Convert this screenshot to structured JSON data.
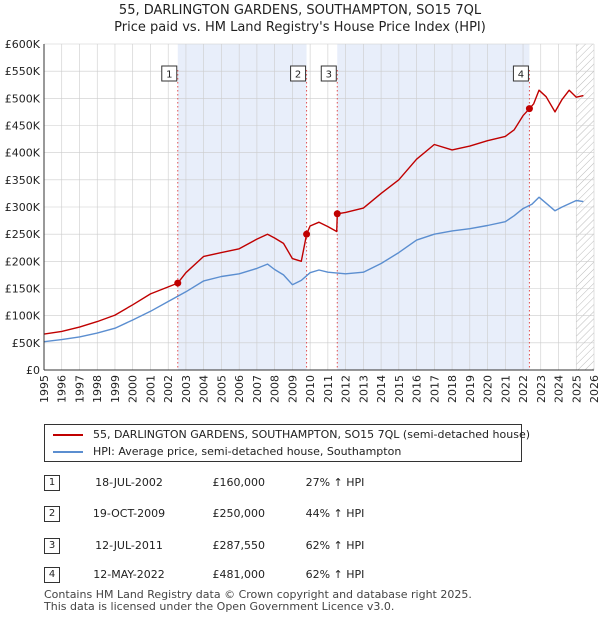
{
  "title_line1": "55, DARLINGTON GARDENS, SOUTHAMPTON, SO15 7QL",
  "title_line2": "Price paid vs. HM Land Registry's House Price Index (HPI)",
  "legend": {
    "property_label": "55, DARLINGTON GARDENS, SOUTHAMPTON, SO15 7QL (semi-detached house)",
    "hpi_label": "HPI: Average price, semi-detached house, Southampton"
  },
  "sales": [
    {
      "badge": "1",
      "date": "18-JUL-2002",
      "price": "£160,000",
      "hpi": "27% ↑ HPI"
    },
    {
      "badge": "2",
      "date": "19-OCT-2009",
      "price": "£250,000",
      "hpi": "44% ↑ HPI"
    },
    {
      "badge": "3",
      "date": "12-JUL-2011",
      "price": "£287,550",
      "hpi": "62% ↑ HPI"
    },
    {
      "badge": "4",
      "date": "12-MAY-2022",
      "price": "£481,000",
      "hpi": "62% ↑ HPI"
    }
  ],
  "footer_line1": "Contains HM Land Registry data © Crown copyright and database right 2025.",
  "footer_line2": "This data is licensed under the Open Government Licence v3.0.",
  "colors": {
    "property_line": "#c00000",
    "hpi_line": "#5b8ed0",
    "shade": "#e8eefa",
    "hatch": "#bbbbbb",
    "vline": "#e05050",
    "grid": "#cccccc"
  },
  "chart_data": {
    "type": "line",
    "title": "Price paid vs. HM Land Registry's House Price Index (HPI)",
    "xlim": [
      1995,
      2026
    ],
    "ylim": [
      0,
      600000
    ],
    "xticks": [
      1995,
      1996,
      1997,
      1998,
      1999,
      2000,
      2001,
      2002,
      2003,
      2004,
      2005,
      2006,
      2007,
      2008,
      2009,
      2010,
      2011,
      2012,
      2013,
      2014,
      2015,
      2016,
      2017,
      2018,
      2019,
      2020,
      2021,
      2022,
      2023,
      2024,
      2025,
      2026
    ],
    "yticks": [
      0,
      50000,
      100000,
      150000,
      200000,
      250000,
      300000,
      350000,
      400000,
      450000,
      500000,
      550000,
      600000
    ],
    "ytick_labels": [
      "£0",
      "£50K",
      "£100K",
      "£150K",
      "£200K",
      "£250K",
      "£300K",
      "£350K",
      "£400K",
      "£450K",
      "£500K",
      "£550K",
      "£600K"
    ],
    "shaded_ranges": [
      [
        2002.54,
        2009.8
      ],
      [
        2011.53,
        2022.36
      ]
    ],
    "hatched_from": 2025.0,
    "series": [
      {
        "name": "55, DARLINGTON GARDENS, SOUTHAMPTON, SO15 7QL (semi-detached house)",
        "x": [
          1995,
          1996,
          1997,
          1998,
          1999,
          2000,
          2001,
          2002.54,
          2003,
          2004,
          2005,
          2006,
          2007,
          2007.6,
          2008,
          2008.5,
          2009,
          2009.5,
          2009.8,
          2010,
          2010.5,
          2011,
          2011.5,
          2011.53,
          2012,
          2013,
          2014,
          2015,
          2016,
          2017,
          2018,
          2019,
          2020,
          2021,
          2021.5,
          2022,
          2022.36,
          2022.6,
          2022.9,
          2023.3,
          2023.8,
          2024.2,
          2024.6,
          2025,
          2025.4
        ],
        "y": [
          66000,
          71000,
          79000,
          89000,
          101000,
          120000,
          140000,
          160000,
          179000,
          209000,
          216000,
          223000,
          241000,
          250000,
          243000,
          233000,
          205000,
          200000,
          250000,
          265000,
          272000,
          264000,
          255000,
          287550,
          290000,
          298000,
          325000,
          350000,
          388000,
          415000,
          405000,
          412000,
          422000,
          430000,
          442000,
          468000,
          481000,
          490000,
          515000,
          503000,
          475000,
          498000,
          515000,
          502000,
          505000
        ]
      },
      {
        "name": "HPI: Average price, semi-detached house, Southampton",
        "x": [
          1995,
          1996,
          1997,
          1998,
          1999,
          2000,
          2001,
          2002,
          2003,
          2004,
          2005,
          2006,
          2007,
          2007.6,
          2008,
          2008.5,
          2009,
          2009.5,
          2010,
          2010.5,
          2011,
          2012,
          2013,
          2014,
          2015,
          2016,
          2017,
          2018,
          2019,
          2020,
          2021,
          2021.5,
          2022,
          2022.5,
          2022.9,
          2023.3,
          2023.8,
          2024.2,
          2024.6,
          2025,
          2025.4
        ],
        "y": [
          52000,
          56000,
          61000,
          68000,
          77000,
          92000,
          108000,
          126000,
          144000,
          164000,
          172000,
          177000,
          187000,
          195000,
          185000,
          175000,
          157000,
          165000,
          179000,
          184000,
          180000,
          177000,
          180000,
          196000,
          216000,
          239000,
          250000,
          256000,
          260000,
          266000,
          273000,
          284000,
          297000,
          305000,
          318000,
          307000,
          293000,
          300000,
          306000,
          312000,
          310000
        ]
      }
    ],
    "sale_markers": [
      {
        "label": "1",
        "x": 2002.54,
        "y": 160000
      },
      {
        "label": "2",
        "x": 2009.8,
        "y": 250000
      },
      {
        "label": "3",
        "x": 2011.53,
        "y": 287550
      },
      {
        "label": "4",
        "x": 2022.36,
        "y": 481000
      }
    ]
  }
}
